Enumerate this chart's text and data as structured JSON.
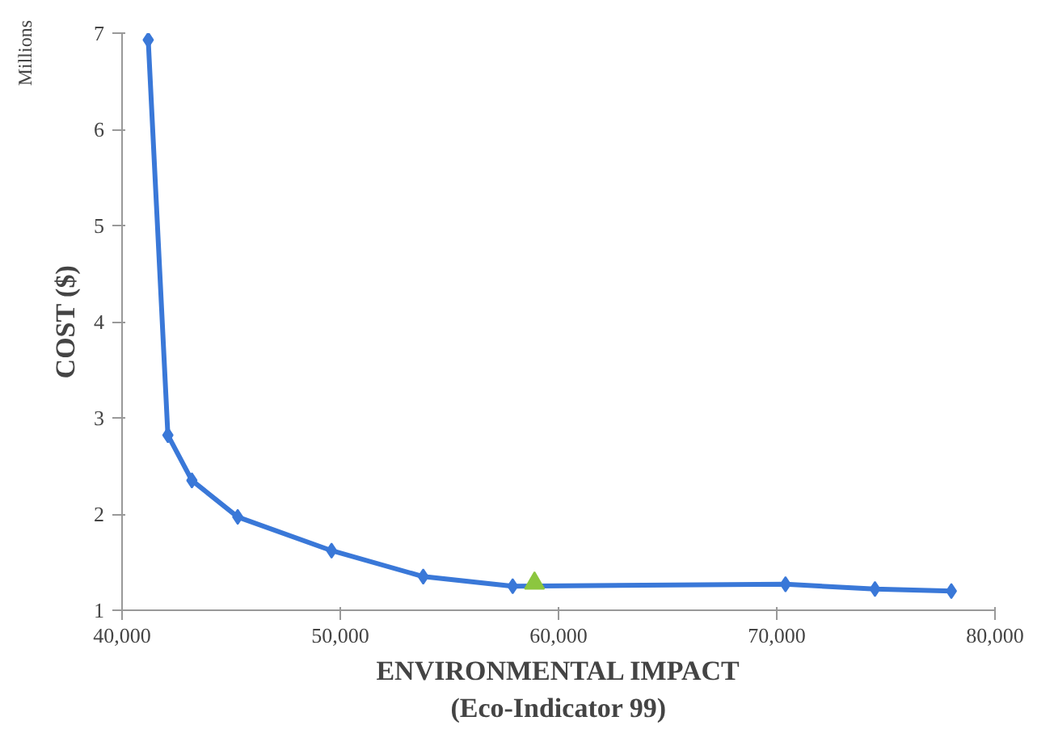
{
  "chart_data": {
    "type": "line",
    "xlabel": "ENVIRONMENTAL IMPACT\n(Eco-Indicator 99)",
    "ylabel": "COST ($)",
    "annotations": [
      "Millions"
    ],
    "xlim": [
      40000,
      80000
    ],
    "xticks": [
      {
        "value": 40000,
        "label": "40,000"
      },
      {
        "value": 50000,
        "label": "50,000"
      },
      {
        "value": 60000,
        "label": "60,000"
      },
      {
        "value": 70000,
        "label": "70,000"
      },
      {
        "value": 80000,
        "label": "80,000"
      }
    ],
    "ylim": [
      1,
      7
    ],
    "yticks": [
      1,
      2,
      3,
      4,
      5,
      6,
      7
    ],
    "grid": false,
    "line_style": "solid",
    "series": [
      {
        "marker": "diamond",
        "color": "#3a78d8",
        "x": [
          41200,
          42100,
          43200,
          45300,
          49600,
          53800,
          57900,
          70400,
          74500,
          78000
        ],
        "values": [
          6.93,
          2.82,
          2.35,
          1.97,
          1.62,
          1.35,
          1.25,
          1.27,
          1.22,
          1.2
        ]
      },
      {
        "type": "scatter",
        "marker": "triangle",
        "color": "#8cc63f",
        "x": [
          58900
        ],
        "values": [
          1.28
        ]
      }
    ]
  }
}
